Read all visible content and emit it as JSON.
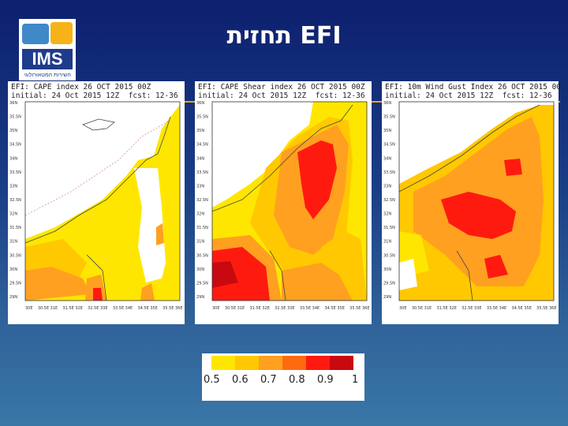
{
  "header": {
    "title": "תחזית EFI"
  },
  "logo": {
    "text": "IMS",
    "subtitle": "השירות המטאורולוגי",
    "icon": "weather-logo-icon"
  },
  "panels": [
    {
      "line1": "EFI: CAPE index 26 OCT 2015 00Z",
      "line2": "initial: 24 Oct 2015 12Z  fcst: 12-36"
    },
    {
      "line1": "EFI: CAPE Shear index 26 OCT 2015 00Z",
      "line2": "initial: 24 Oct 2015 12Z  fcst: 12-36"
    },
    {
      "line1": "EFI: 10m Wind Gust Index 26 OCT 2015 00",
      "line2": "initial: 24 Oct 2015 12Z  fcst: 12-36"
    }
  ],
  "axes": {
    "lat_labels": [
      "36N",
      "35.5N",
      "35N",
      "34.5N",
      "34N",
      "33.5N",
      "33N",
      "32.5N",
      "32N",
      "31.5N",
      "31N",
      "30.5N",
      "30N",
      "29.5N",
      "29N"
    ],
    "lon_labels": [
      "30E",
      "30.5E",
      "31E",
      "31.5E",
      "32E",
      "32.5E",
      "33E",
      "33.5E",
      "34E",
      "34.5E",
      "35E",
      "35.5E",
      "36E"
    ]
  },
  "legend": {
    "labels": [
      "0.5",
      "0.6",
      "0.7",
      "0.8",
      "0.9",
      "1"
    ],
    "colors": [
      "#ffe600",
      "#ffc800",
      "#ffa020",
      "#ff6a10",
      "#ff1a10",
      "#c80a10"
    ]
  },
  "colors": {
    "accent": "#f7a21a",
    "white": "#ffffff"
  }
}
